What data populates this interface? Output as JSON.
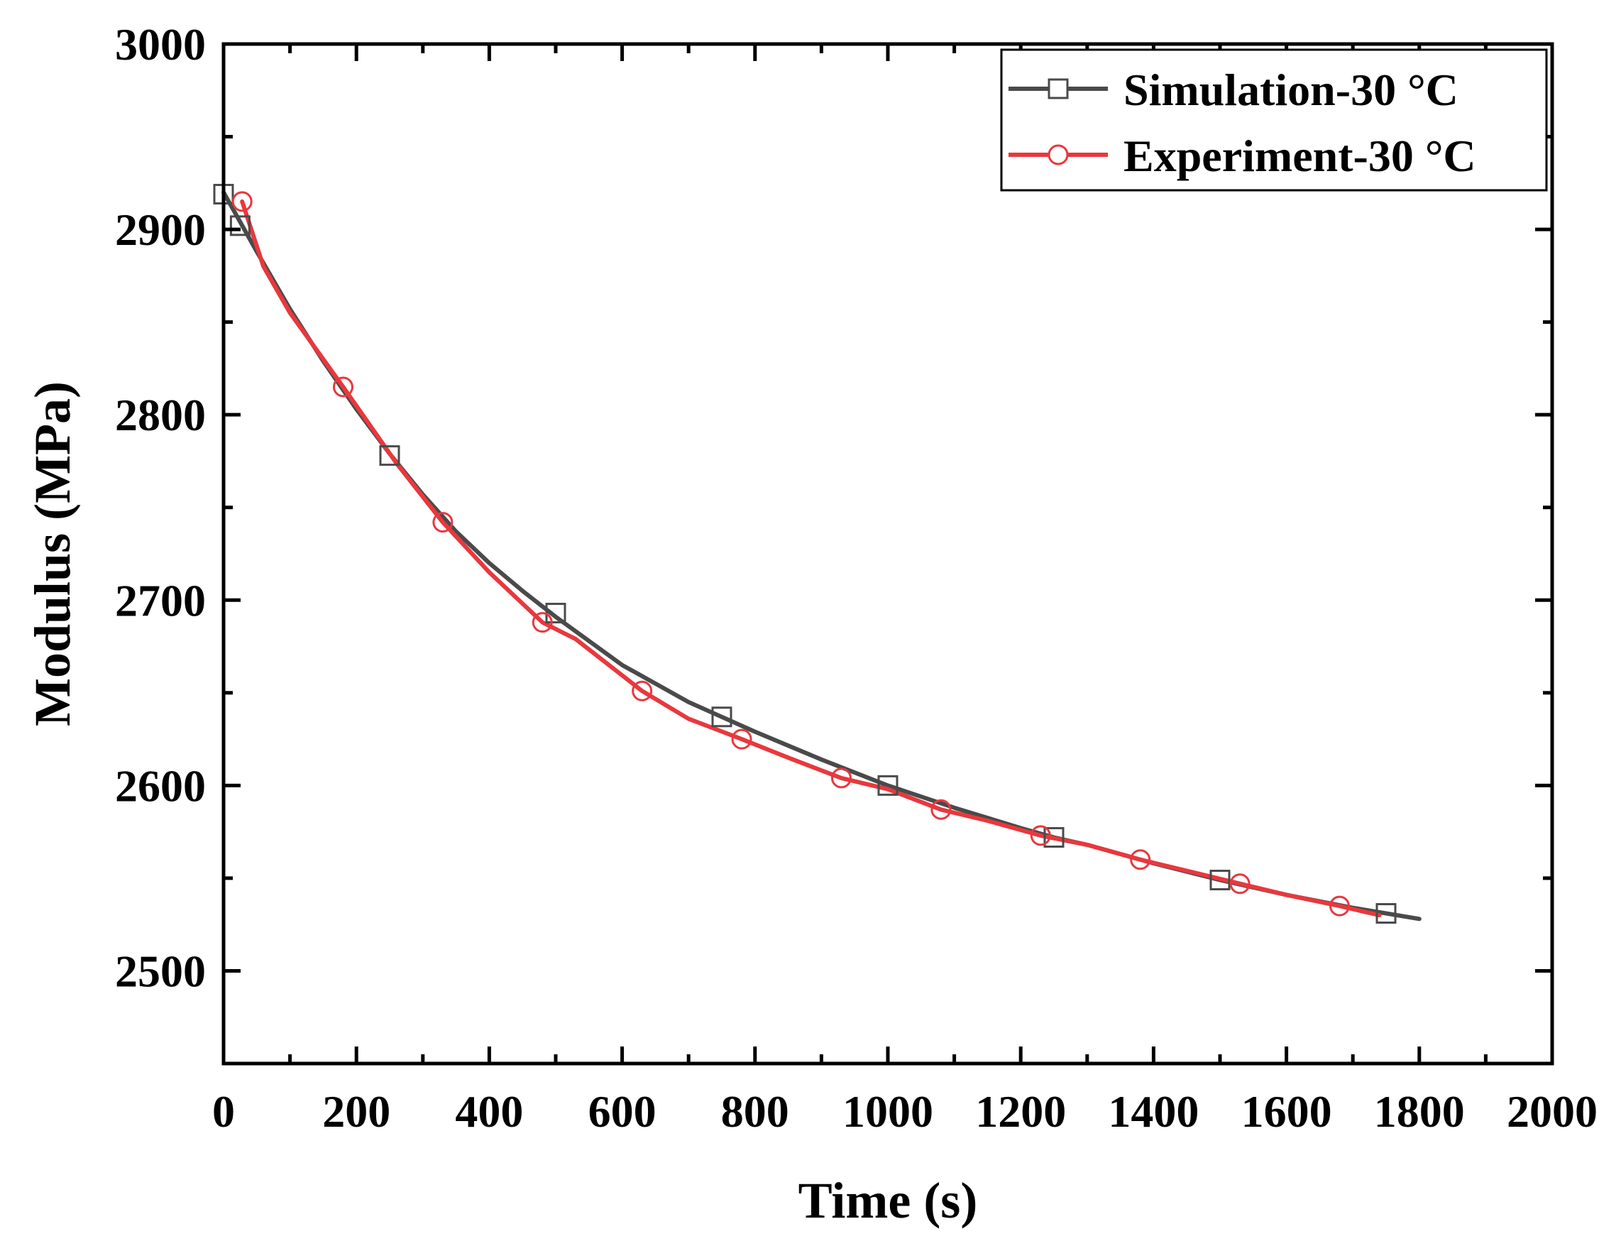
{
  "chart_data": {
    "type": "line",
    "title": "",
    "xlabel": "Time (s)",
    "ylabel": "Modulus (MPa)",
    "xlim": [
      0,
      2000
    ],
    "ylim": [
      2450,
      3000
    ],
    "xticks": [
      0,
      200,
      400,
      600,
      800,
      1000,
      1200,
      1400,
      1600,
      1800,
      2000
    ],
    "yticks": [
      2500,
      2600,
      2700,
      2800,
      2900,
      3000
    ],
    "xtick_labels": [
      "0",
      "200",
      "400",
      "600",
      "800",
      "1000",
      "1200",
      "1400",
      "1600",
      "1800",
      "2000"
    ],
    "ytick_labels": [
      "2500",
      "2600",
      "2700",
      "2800",
      "2900",
      "3000"
    ],
    "grid": false,
    "legend_position": "top-right",
    "series": [
      {
        "name": "Simulation-30 °C",
        "color": "#4a4a4a",
        "marker": "square",
        "line_x": [
          0,
          50,
          100,
          150,
          200,
          250,
          300,
          350,
          400,
          450,
          500,
          600,
          700,
          750,
          800,
          900,
          1000,
          1100,
          1200,
          1250,
          1300,
          1400,
          1500,
          1600,
          1700,
          1750,
          1800
        ],
        "line_y": [
          2920,
          2888,
          2857,
          2829,
          2803,
          2779,
          2757,
          2737,
          2720,
          2705,
          2691,
          2665,
          2645,
          2637,
          2629,
          2614,
          2600,
          2588,
          2577,
          2572,
          2568,
          2558,
          2549,
          2541,
          2534,
          2531,
          2528
        ],
        "marker_x": [
          0,
          25,
          250,
          500,
          750,
          1000,
          1250,
          1500,
          1750
        ],
        "marker_y": [
          2919,
          2902,
          2778,
          2693,
          2637,
          2600,
          2572,
          2549,
          2531
        ]
      },
      {
        "name": "Experiment-30 °C",
        "color": "#e8383d",
        "marker": "circle",
        "line_x": [
          28,
          60,
          100,
          180,
          260,
          330,
          400,
          480,
          530,
          630,
          700,
          780,
          850,
          930,
          1000,
          1080,
          1150,
          1230,
          1300,
          1380,
          1450,
          1530,
          1600,
          1680,
          1740
        ],
        "line_y": [
          2915,
          2880,
          2855,
          2815,
          2774,
          2742,
          2715,
          2688,
          2679,
          2651,
          2636,
          2625,
          2615,
          2604,
          2598,
          2587,
          2581,
          2573,
          2568,
          2560,
          2554,
          2547,
          2541,
          2535,
          2530
        ],
        "marker_x": [
          28,
          180,
          330,
          480,
          630,
          780,
          930,
          1080,
          1230,
          1380,
          1530,
          1680
        ],
        "marker_y": [
          2915,
          2815,
          2742,
          2688,
          2651,
          2625,
          2604,
          2587,
          2573,
          2560,
          2547,
          2535
        ]
      }
    ]
  }
}
